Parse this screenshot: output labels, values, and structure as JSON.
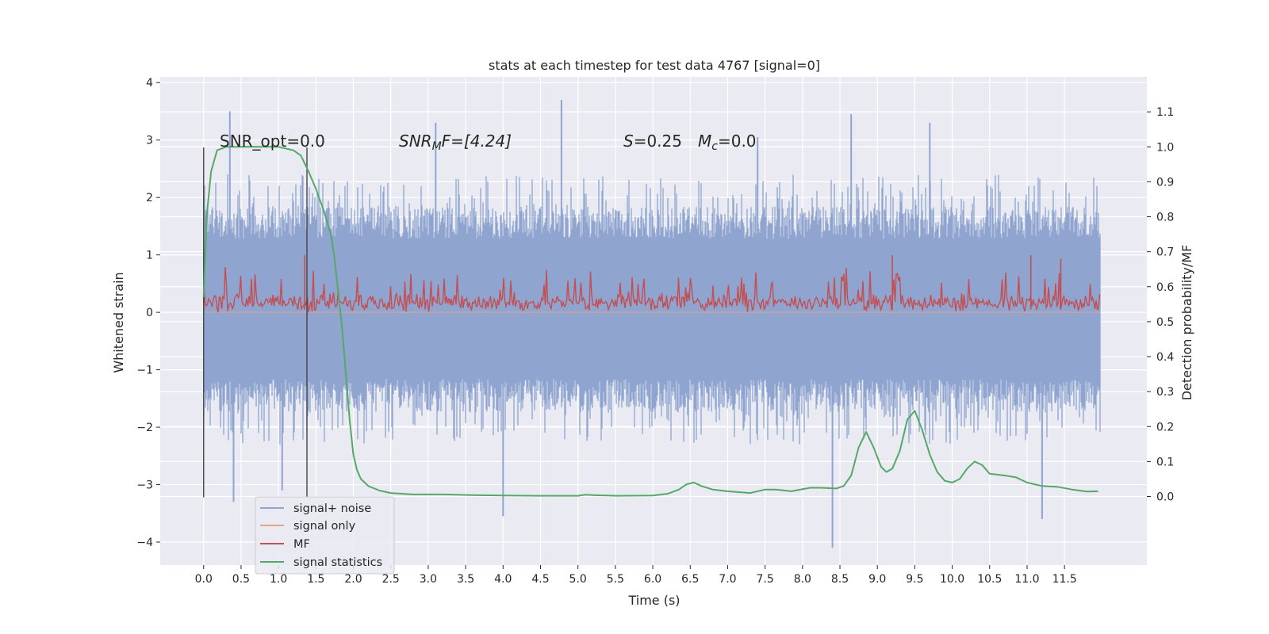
{
  "chart_data": {
    "type": "line",
    "title": "stats at each timestep for test data 4767 [signal=0]",
    "xlabel": "Time (s)",
    "ylabel": "Whitened strain",
    "y2label": "Detection probability/MF",
    "xlim": [
      -0.58,
      12.6
    ],
    "ylim": [
      -4.4,
      4.1
    ],
    "y2lim": [
      -0.196,
      1.2
    ],
    "x_ticks": [
      "0.0",
      "0.5",
      "1.0",
      "1.5",
      "2.0",
      "2.5",
      "3.0",
      "3.5",
      "4.0",
      "4.5",
      "5.0",
      "5.5",
      "6.0",
      "6.5",
      "7.0",
      "7.5",
      "8.0",
      "8.5",
      "9.0",
      "9.5",
      "10.0",
      "10.5",
      "11.0",
      "11.5"
    ],
    "y_ticks": [
      "4",
      "3",
      "2",
      "1",
      "0",
      "−1",
      "−2",
      "−3",
      "−4"
    ],
    "y2_ticks": [
      "1.1",
      "1.0",
      "0.9",
      "0.8",
      "0.7",
      "0.6",
      "0.5",
      "0.4",
      "0.3",
      "0.2",
      "0.1",
      "0.0"
    ],
    "grid": true,
    "legend_position": "lower-left",
    "annotations": {
      "snr_opt": "SNR_opt=0.0",
      "snr_mf_prefix": "SNR",
      "snr_mf_sub": "M",
      "snr_mf_suffix": "F=[4.24]",
      "s_label": "S",
      "s_value": "=0.25",
      "mc_label": "M",
      "mc_sub": "c",
      "mc_value": "=0.0"
    },
    "vertical_markers_x": [
      0.0,
      1.38
    ],
    "series": [
      {
        "name": "signal+ noise",
        "color": "#8fa5cf",
        "axis": "left",
        "kind": "noise",
        "envelope_upper": 1.6,
        "envelope_lower": -1.45,
        "typical_max": 2.3,
        "typical_min": -2.2,
        "spikes": [
          [
            0.35,
            3.5
          ],
          [
            0.4,
            -3.3
          ],
          [
            1.05,
            -3.1
          ],
          [
            4.78,
            3.7
          ],
          [
            4.0,
            -3.55
          ],
          [
            8.4,
            -4.1
          ],
          [
            8.65,
            3.45
          ],
          [
            9.7,
            3.3
          ],
          [
            11.2,
            -3.6
          ],
          [
            3.1,
            3.3
          ],
          [
            7.4,
            3.05
          ]
        ]
      },
      {
        "name": "signal only",
        "color": "#e8a38a",
        "axis": "left",
        "kind": "flat"
      },
      {
        "name": "MF",
        "color": "#c44e52",
        "axis": "right",
        "kind": "mf",
        "baseline": 0.535,
        "typical_high": 0.65,
        "spikes": [
          [
            1.35,
            0.69
          ],
          [
            9.2,
            0.69
          ],
          [
            11.05,
            0.69
          ],
          [
            11.45,
            0.68
          ]
        ]
      },
      {
        "name": "signal statistics",
        "color": "#55a868",
        "axis": "right",
        "kind": "curve",
        "x": [
          0.0,
          0.04,
          0.1,
          0.18,
          0.3,
          0.5,
          0.8,
          1.0,
          1.1,
          1.2,
          1.3,
          1.4,
          1.5,
          1.6,
          1.7,
          1.75,
          1.8,
          1.85,
          1.9,
          1.95,
          2.0,
          2.05,
          2.1,
          2.2,
          2.35,
          2.5,
          2.8,
          3.2,
          3.6,
          4.0,
          4.5,
          5.0,
          5.1,
          5.2,
          5.5,
          6.0,
          6.2,
          6.35,
          6.45,
          6.55,
          6.65,
          6.8,
          7.0,
          7.3,
          7.5,
          7.65,
          7.85,
          8.1,
          8.25,
          8.45,
          8.55,
          8.65,
          8.75,
          8.85,
          8.95,
          9.05,
          9.12,
          9.2,
          9.3,
          9.4,
          9.5,
          9.6,
          9.7,
          9.8,
          9.9,
          10.0,
          10.1,
          10.2,
          10.3,
          10.4,
          10.5,
          10.7,
          10.85,
          11.0,
          11.2,
          11.4,
          11.6,
          11.8,
          11.95
        ],
        "values": [
          0.57,
          0.8,
          0.93,
          0.99,
          1.0,
          1.0,
          1.0,
          1.0,
          0.995,
          0.99,
          0.975,
          0.93,
          0.88,
          0.82,
          0.75,
          0.68,
          0.58,
          0.48,
          0.35,
          0.22,
          0.12,
          0.075,
          0.05,
          0.03,
          0.017,
          0.01,
          0.006,
          0.006,
          0.004,
          0.003,
          0.002,
          0.002,
          0.005,
          0.004,
          0.002,
          0.003,
          0.008,
          0.02,
          0.035,
          0.04,
          0.03,
          0.02,
          0.015,
          0.01,
          0.02,
          0.02,
          0.015,
          0.025,
          0.025,
          0.023,
          0.03,
          0.06,
          0.14,
          0.185,
          0.14,
          0.085,
          0.07,
          0.08,
          0.13,
          0.22,
          0.245,
          0.19,
          0.12,
          0.07,
          0.045,
          0.04,
          0.05,
          0.08,
          0.1,
          0.09,
          0.065,
          0.06,
          0.055,
          0.04,
          0.03,
          0.028,
          0.02,
          0.014,
          0.015
        ]
      }
    ]
  }
}
